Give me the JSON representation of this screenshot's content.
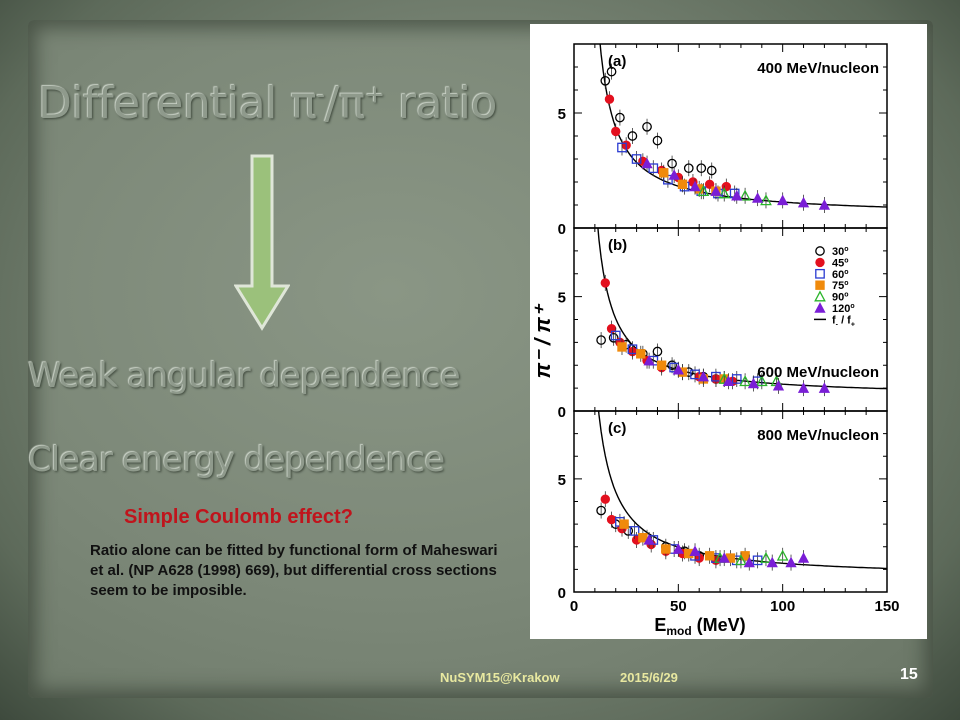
{
  "slide": {
    "title_main": "Differential π",
    "title_sup1": "-",
    "title_mid": "/π",
    "title_sup2": "+",
    "title_end": " ratio",
    "heading_weak": "Weak angular dependence",
    "heading_clear": "Clear energy dependence",
    "coulomb_question": "Simple Coulomb effect?",
    "note": "Ratio alone can be fitted by  functional form of Maheswari et al. (NP A628 (1998) 669), but differential cross sections  seem to be imposible.",
    "footer_conf": "NuSYM15@Krakow",
    "footer_date": "2015/6/29",
    "page_number": "15",
    "arrow_color": "#9bc17b"
  },
  "chart_data": {
    "type": "scatter",
    "ylabel": "π⁻ / π⁺",
    "xlabel_main": "E",
    "xlabel_sub": "mod",
    "xlabel_unit": " (MeV)",
    "xlim": [
      0,
      150
    ],
    "x_ticks": [
      "0",
      "50",
      "100",
      "150"
    ],
    "legend": {
      "placement": "panel (b) top-right",
      "entries": [
        {
          "label": "30",
          "sup": "o",
          "marker": "open-circle",
          "color": "#000000"
        },
        {
          "label": "45",
          "sup": "o",
          "marker": "filled-circle",
          "color": "#e3101e"
        },
        {
          "label": "60",
          "sup": "o",
          "marker": "open-square",
          "color": "#2a3bd1"
        },
        {
          "label": "75",
          "sup": "o",
          "marker": "filled-square",
          "color": "#f08a0c"
        },
        {
          "label": "90",
          "sup": "o",
          "marker": "open-triangle",
          "color": "#2ab52a"
        },
        {
          "label": "120",
          "sup": "o",
          "marker": "filled-triangle",
          "color": "#7a1ed6"
        },
        {
          "label": "f",
          "sub": "-",
          "label2": " / f",
          "sub2": "+",
          "marker": "line",
          "color": "#000000"
        }
      ]
    },
    "panels": [
      {
        "tag": "(a)",
        "energy_label": "400 MeV/nucleon",
        "ylim": [
          0,
          8
        ],
        "y_ticks": [
          "0",
          "5"
        ],
        "curve": {
          "A": 60,
          "x0": 4.5,
          "c": 0.5
        },
        "series": [
          {
            "name": "30",
            "marker": "open-circle",
            "color": "#000000",
            "points": [
              [
                15,
                6.4
              ],
              [
                18,
                6.8
              ],
              [
                22,
                4.8
              ],
              [
                28,
                4.0
              ],
              [
                35,
                4.4
              ],
              [
                40,
                3.8
              ],
              [
                47,
                2.8
              ],
              [
                55,
                2.6
              ],
              [
                61,
                2.6
              ],
              [
                66,
                2.5
              ]
            ]
          },
          {
            "name": "45",
            "marker": "filled-circle",
            "color": "#e3101e",
            "points": [
              [
                17,
                5.6
              ],
              [
                20,
                4.2
              ],
              [
                25,
                3.6
              ],
              [
                33,
                2.9
              ],
              [
                42,
                2.5
              ],
              [
                50,
                2.2
              ],
              [
                57,
                2.0
              ],
              [
                65,
                1.9
              ],
              [
                73,
                1.8
              ]
            ]
          },
          {
            "name": "60",
            "marker": "open-square",
            "color": "#2a3bd1",
            "points": [
              [
                23,
                3.5
              ],
              [
                30,
                3.0
              ],
              [
                38,
                2.6
              ],
              [
                45,
                2.1
              ],
              [
                53,
                1.8
              ],
              [
                61,
                1.6
              ],
              [
                69,
                1.5
              ],
              [
                77,
                1.5
              ]
            ]
          },
          {
            "name": "75",
            "marker": "filled-square",
            "color": "#f08a0c",
            "points": [
              [
                43,
                2.4
              ],
              [
                52,
                1.9
              ],
              [
                60,
                1.7
              ],
              [
                68,
                1.6
              ]
            ]
          },
          {
            "name": "90",
            "marker": "open-triangle",
            "color": "#2ab52a",
            "points": [
              [
                62,
                1.6
              ],
              [
                72,
                1.5
              ],
              [
                82,
                1.4
              ],
              [
                92,
                1.2
              ]
            ]
          },
          {
            "name": "120",
            "marker": "filled-triangle",
            "color": "#7a1ed6",
            "points": [
              [
                35,
                2.8
              ],
              [
                48,
                2.3
              ],
              [
                58,
                1.8
              ],
              [
                68,
                1.6
              ],
              [
                78,
                1.4
              ],
              [
                88,
                1.3
              ],
              [
                100,
                1.2
              ],
              [
                110,
                1.1
              ],
              [
                120,
                1.0
              ]
            ]
          }
        ]
      },
      {
        "tag": "(b)",
        "energy_label": "600 MeV/nucleon",
        "ylim": [
          0,
          8
        ],
        "y_ticks": [
          "0",
          "5"
        ],
        "curve": {
          "A": 55,
          "x0": 4.0,
          "c": 0.6
        },
        "series": [
          {
            "name": "30",
            "marker": "open-circle",
            "color": "#000000",
            "points": [
              [
                13,
                3.1
              ],
              [
                19,
                3.2
              ],
              [
                25,
                2.9
              ],
              [
                33,
                2.5
              ],
              [
                40,
                2.6
              ],
              [
                47,
                2.0
              ],
              [
                55,
                1.7
              ],
              [
                62,
                1.5
              ],
              [
                68,
                1.4
              ]
            ]
          },
          {
            "name": "45",
            "marker": "filled-circle",
            "color": "#e3101e",
            "points": [
              [
                15,
                5.6
              ],
              [
                18,
                3.6
              ],
              [
                22,
                3.0
              ],
              [
                28,
                2.6
              ],
              [
                35,
                2.2
              ],
              [
                42,
                1.9
              ],
              [
                52,
                1.7
              ],
              [
                60,
                1.5
              ],
              [
                68,
                1.4
              ],
              [
                76,
                1.3
              ]
            ]
          },
          {
            "name": "60",
            "marker": "open-square",
            "color": "#2a3bd1",
            "points": [
              [
                20,
                3.3
              ],
              [
                28,
                2.7
              ],
              [
                38,
                2.2
              ],
              [
                48,
                1.9
              ],
              [
                58,
                1.6
              ],
              [
                68,
                1.5
              ],
              [
                78,
                1.4
              ],
              [
                88,
                1.3
              ]
            ]
          },
          {
            "name": "75",
            "marker": "filled-square",
            "color": "#f08a0c",
            "points": [
              [
                23,
                2.8
              ],
              [
                32,
                2.5
              ],
              [
                42,
                2.0
              ],
              [
                52,
                1.7
              ],
              [
                62,
                1.4
              ],
              [
                72,
                1.4
              ]
            ]
          },
          {
            "name": "90",
            "marker": "open-triangle",
            "color": "#2ab52a",
            "points": [
              [
                72,
                1.4
              ],
              [
                82,
                1.3
              ],
              [
                90,
                1.3
              ],
              [
                97,
                1.3
              ]
            ]
          },
          {
            "name": "120",
            "marker": "filled-triangle",
            "color": "#7a1ed6",
            "points": [
              [
                36,
                2.2
              ],
              [
                50,
                1.8
              ],
              [
                62,
                1.5
              ],
              [
                74,
                1.3
              ],
              [
                86,
                1.2
              ],
              [
                98,
                1.1
              ],
              [
                110,
                1.0
              ],
              [
                120,
                1.0
              ]
            ]
          }
        ]
      },
      {
        "tag": "(c)",
        "energy_label": "800 MeV/nucleon",
        "ylim": [
          0,
          8
        ],
        "y_ticks": [
          "0",
          "5"
        ],
        "curve": {
          "A": 65,
          "x0": 3.0,
          "c": 0.6
        },
        "series": [
          {
            "name": "30",
            "marker": "open-circle",
            "color": "#000000",
            "points": [
              [
                13,
                3.6
              ],
              [
                20,
                3.0
              ],
              [
                26,
                2.7
              ],
              [
                35,
                2.4
              ],
              [
                44,
                2.0
              ],
              [
                53,
                1.8
              ],
              [
                60,
                1.6
              ]
            ]
          },
          {
            "name": "45",
            "marker": "filled-circle",
            "color": "#e3101e",
            "points": [
              [
                15,
                4.1
              ],
              [
                18,
                3.2
              ],
              [
                23,
                2.8
              ],
              [
                30,
                2.3
              ],
              [
                37,
                2.1
              ],
              [
                44,
                1.8
              ],
              [
                52,
                1.7
              ],
              [
                60,
                1.5
              ],
              [
                68,
                1.4
              ]
            ]
          },
          {
            "name": "60",
            "marker": "open-square",
            "color": "#2a3bd1",
            "points": [
              [
                22,
                3.1
              ],
              [
                29,
                2.7
              ],
              [
                38,
                2.3
              ],
              [
                48,
                1.9
              ],
              [
                58,
                1.6
              ],
              [
                68,
                1.5
              ],
              [
                78,
                1.4
              ],
              [
                88,
                1.4
              ]
            ]
          },
          {
            "name": "75",
            "marker": "filled-square",
            "color": "#f08a0c",
            "points": [
              [
                24,
                3.0
              ],
              [
                33,
                2.4
              ],
              [
                44,
                1.9
              ],
              [
                55,
                1.7
              ],
              [
                65,
                1.6
              ],
              [
                75,
                1.5
              ],
              [
                82,
                1.6
              ]
            ]
          },
          {
            "name": "90",
            "marker": "open-triangle",
            "color": "#2ab52a",
            "points": [
              [
                70,
                1.5
              ],
              [
                80,
                1.4
              ],
              [
                92,
                1.5
              ],
              [
                100,
                1.6
              ]
            ]
          },
          {
            "name": "120",
            "marker": "filled-triangle",
            "color": "#7a1ed6",
            "points": [
              [
                36,
                2.3
              ],
              [
                50,
                1.9
              ],
              [
                58,
                1.8
              ],
              [
                72,
                1.5
              ],
              [
                84,
                1.3
              ],
              [
                95,
                1.3
              ],
              [
                104,
                1.3
              ],
              [
                110,
                1.5
              ]
            ]
          }
        ]
      }
    ]
  }
}
